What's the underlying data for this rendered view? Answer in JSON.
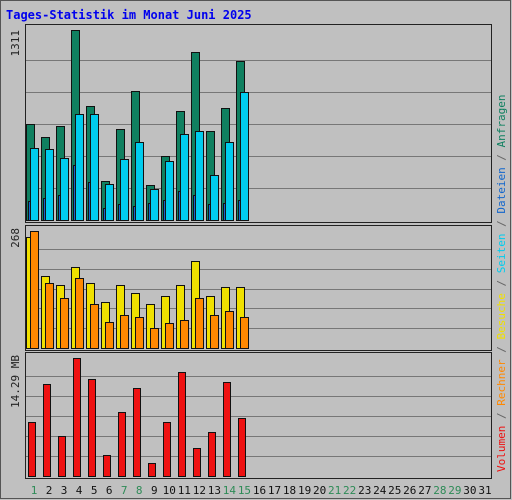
{
  "chart_data": {
    "type": "bar",
    "title": "Tages-Statistik im Monat Juni 2025",
    "x": [
      "1",
      "2",
      "3",
      "4",
      "5",
      "6",
      "7",
      "8",
      "9",
      "10",
      "11",
      "12",
      "13",
      "14",
      "15",
      "16",
      "17",
      "18",
      "19",
      "20",
      "21",
      "22",
      "23",
      "24",
      "25",
      "26",
      "27",
      "28",
      "29",
      "30",
      "31"
    ],
    "weekend_days": [
      1,
      7,
      8,
      14,
      15,
      21,
      22,
      28,
      29
    ],
    "right_legend": [
      {
        "text": "Volumen",
        "color": "#EE1111"
      },
      {
        "text": " / ",
        "color": "#666666"
      },
      {
        "text": "Rechner",
        "color": "#FF8800"
      },
      {
        "text": " / ",
        "color": "#666666"
      },
      {
        "text": "Besuche",
        "color": "#F0E000"
      },
      {
        "text": " / ",
        "color": "#666666"
      },
      {
        "text": "Seiten",
        "color": "#00CCEE"
      },
      {
        "text": " / ",
        "color": "#666666"
      },
      {
        "text": "Dateien",
        "color": "#1166CC"
      },
      {
        "text": " / ",
        "color": "#666666"
      },
      {
        "text": "Anfragen",
        "color": "#108060"
      }
    ],
    "panels": [
      {
        "max_label": "1311",
        "ymax": 1311,
        "series": [
          {
            "name": "Anfragen",
            "color": "#108060",
            "values": [
              665,
              575,
              650,
              1311,
              790,
              270,
              630,
              890,
              240,
              440,
              755,
              1160,
              615,
              770,
              1100
            ]
          },
          {
            "name": "Dateien",
            "color": "#1166CC",
            "values": [
              130,
              155,
              170,
              380,
              260,
              80,
              110,
              100,
              120,
              140,
              200,
              170,
              110,
              120,
              140
            ]
          },
          {
            "name": "Seiten",
            "color": "#00CCEE",
            "values": [
              500,
              490,
              430,
              730,
              730,
              245,
              420,
              540,
              215,
              405,
              590,
              615,
              310,
              540,
              880
            ]
          }
        ]
      },
      {
        "max_label": "268",
        "ymax": 268,
        "series": [
          {
            "name": "Besuche",
            "color": "#F0E000",
            "values": [
              255,
              165,
              145,
              185,
              150,
              105,
              145,
              125,
              100,
              120,
              145,
              200,
              120,
              140,
              140
            ]
          },
          {
            "name": "Rechner",
            "color": "#FF8800",
            "values": [
              268,
              150,
              115,
              160,
              100,
              60,
              75,
              70,
              45,
              58,
              65,
              115,
              75,
              85,
              70
            ]
          }
        ]
      },
      {
        "max_label": "14.29 MB",
        "ymax": 14.29,
        "series": [
          {
            "name": "Volumen",
            "color": "#EE1111",
            "values": [
              6.6,
              11.1,
              4.9,
              14.29,
              11.8,
              2.6,
              7.8,
              10.6,
              1.6,
              6.6,
              12.6,
              3.4,
              5.3,
              11.4,
              7.0
            ]
          }
        ]
      }
    ]
  }
}
